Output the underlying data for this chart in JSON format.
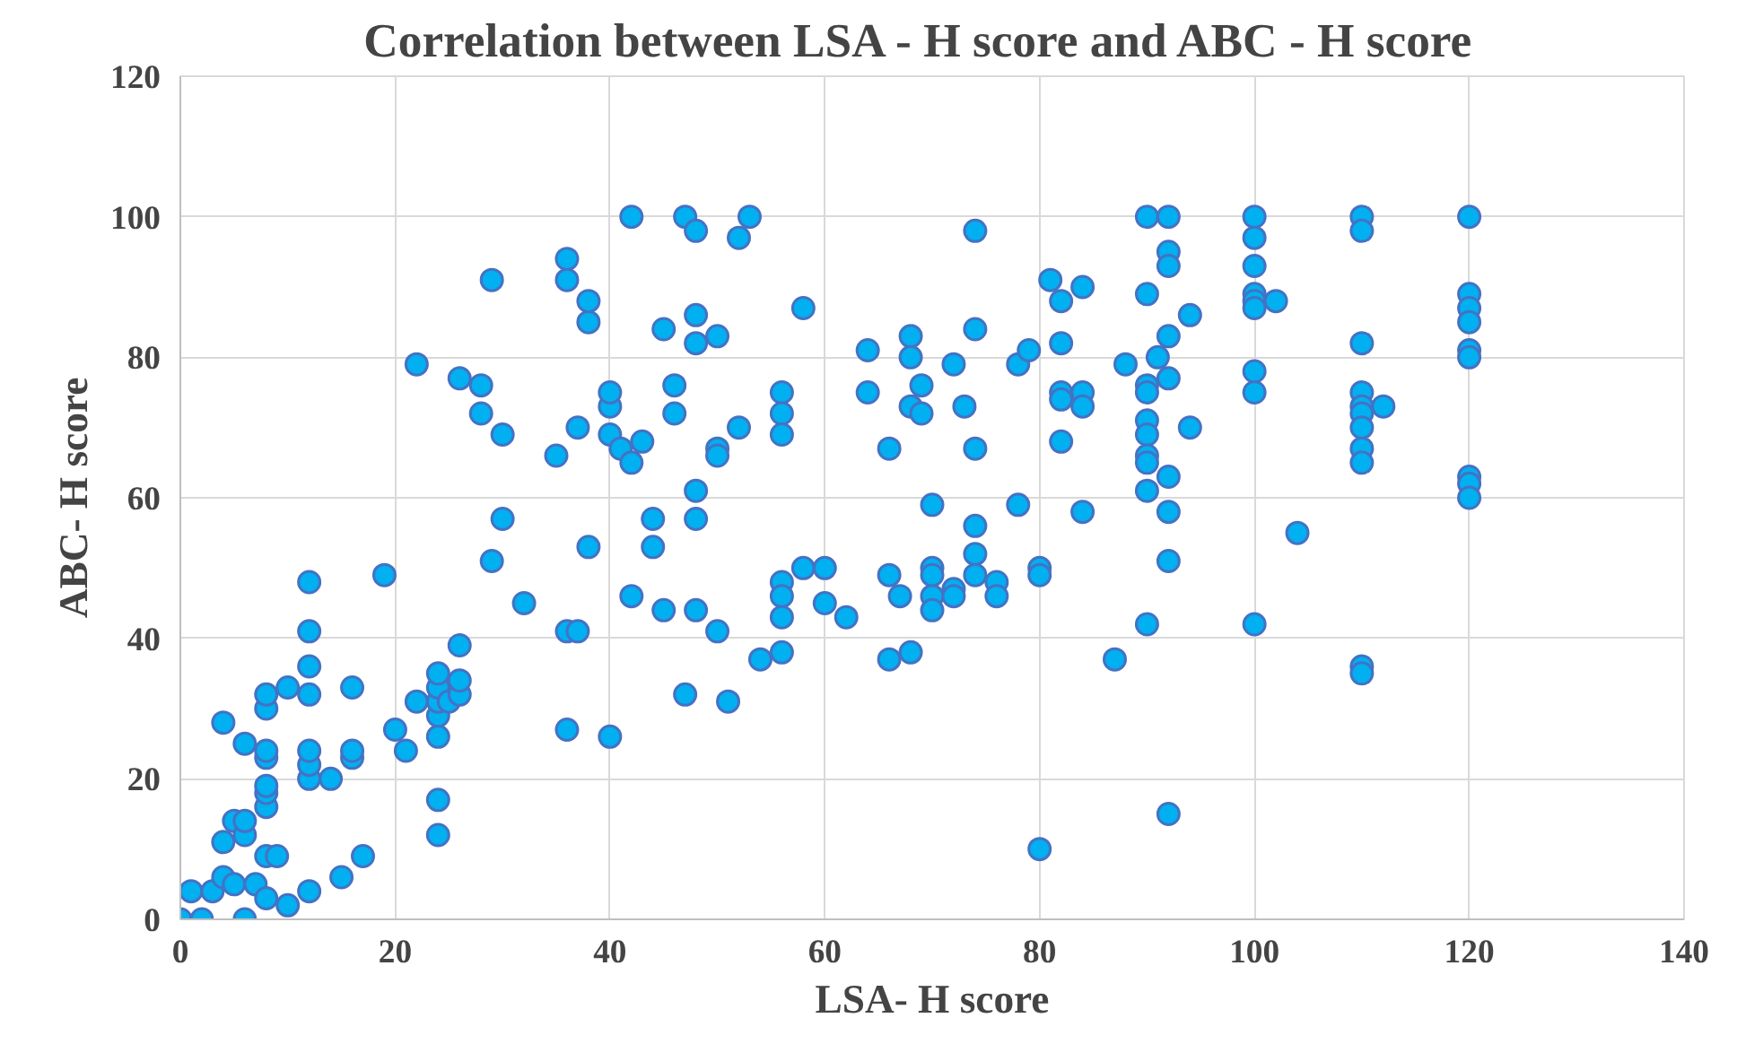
{
  "chart_data": {
    "type": "scatter",
    "title": "Correlation  between  LSA - H score and ABC - H score",
    "xlabel": "LSA- H score",
    "ylabel": "ABC- H score",
    "xlim": [
      0,
      140
    ],
    "ylim": [
      0,
      120
    ],
    "xticks": [
      0,
      20,
      40,
      60,
      80,
      100,
      120,
      140
    ],
    "yticks": [
      0,
      20,
      40,
      60,
      80,
      100,
      120
    ],
    "grid": true,
    "marker": "circle",
    "series": [
      {
        "color": "#00b0f0",
        "x": [
          0,
          2,
          6,
          1,
          3,
          4,
          5,
          4,
          5,
          6,
          6,
          4,
          6,
          7,
          8,
          8,
          9,
          8,
          8,
          8,
          8,
          8,
          8,
          8,
          10,
          10,
          12,
          12,
          12,
          12,
          12,
          12,
          12,
          12,
          14,
          15,
          16,
          16,
          16,
          17,
          20,
          19,
          21,
          22,
          22,
          24,
          24,
          24,
          24,
          24,
          24,
          24,
          25,
          26,
          26,
          26,
          26,
          28,
          28,
          29,
          29,
          30,
          30,
          32,
          35,
          36,
          36,
          36,
          36,
          37,
          37,
          38,
          38,
          38,
          40,
          40,
          40,
          40,
          41,
          42,
          42,
          42,
          43,
          44,
          44,
          45,
          45,
          46,
          46,
          47,
          47,
          48,
          48,
          48,
          48,
          48,
          48,
          50,
          50,
          50,
          50,
          51,
          52,
          52,
          53,
          54,
          56,
          56,
          56,
          56,
          56,
          56,
          56,
          58,
          58,
          60,
          60,
          62,
          64,
          64,
          66,
          66,
          66,
          67,
          68,
          68,
          68,
          68,
          69,
          69,
          70,
          70,
          70,
          70,
          70,
          72,
          72,
          72,
          73,
          74,
          74,
          74,
          74,
          74,
          74,
          76,
          76,
          78,
          78,
          79,
          80,
          80,
          80,
          81,
          82,
          82,
          82,
          82,
          82,
          84,
          84,
          84,
          84,
          87,
          88,
          90,
          90,
          90,
          90,
          90,
          90,
          90,
          90,
          90,
          90,
          91,
          92,
          92,
          92,
          92,
          92,
          92,
          92,
          92,
          92,
          94,
          94,
          100,
          100,
          100,
          100,
          100,
          100,
          100,
          100,
          100,
          102,
          104,
          110,
          110,
          110,
          110,
          110,
          110,
          110,
          110,
          110,
          110,
          110,
          112,
          120,
          120,
          120,
          120,
          120,
          120,
          120,
          120,
          120
        ],
        "values": [
          0,
          0,
          0,
          4,
          4,
          6,
          5,
          11,
          14,
          12,
          14,
          28,
          25,
          5,
          3,
          9,
          9,
          16,
          18,
          19,
          23,
          24,
          30,
          32,
          33,
          2,
          4,
          20,
          22,
          24,
          32,
          36,
          41,
          48,
          20,
          6,
          23,
          24,
          33,
          9,
          27,
          49,
          24,
          31,
          79,
          12,
          17,
          26,
          29,
          31,
          33,
          35,
          31,
          32,
          34,
          39,
          77,
          72,
          76,
          51,
          91,
          57,
          69,
          45,
          66,
          94,
          91,
          41,
          27,
          41,
          70,
          85,
          88,
          53,
          26,
          73,
          75,
          69,
          67,
          100,
          65,
          46,
          68,
          53,
          57,
          84,
          44,
          76,
          72,
          100,
          32,
          98,
          86,
          82,
          61,
          57,
          44,
          83,
          67,
          66,
          41,
          31,
          97,
          70,
          100,
          37,
          75,
          72,
          69,
          48,
          46,
          43,
          38,
          87,
          50,
          50,
          45,
          43,
          81,
          75,
          67,
          49,
          37,
          46,
          83,
          80,
          73,
          38,
          76,
          72,
          59,
          50,
          49,
          46,
          44,
          79,
          47,
          46,
          73,
          98,
          84,
          67,
          56,
          52,
          49,
          48,
          46,
          79,
          59,
          81,
          50,
          49,
          10,
          91,
          88,
          82,
          75,
          74,
          68,
          90,
          75,
          73,
          58,
          37,
          79,
          100,
          89,
          76,
          75,
          71,
          69,
          66,
          65,
          61,
          42,
          80,
          100,
          95,
          93,
          83,
          77,
          63,
          58,
          51,
          15,
          86,
          70,
          100,
          97,
          93,
          89,
          88,
          87,
          78,
          75,
          42,
          88,
          55,
          100,
          98,
          82,
          75,
          73,
          72,
          70,
          67,
          65,
          36,
          35,
          73,
          100,
          89,
          87,
          85,
          81,
          80,
          63,
          62,
          60
        ]
      }
    ]
  }
}
